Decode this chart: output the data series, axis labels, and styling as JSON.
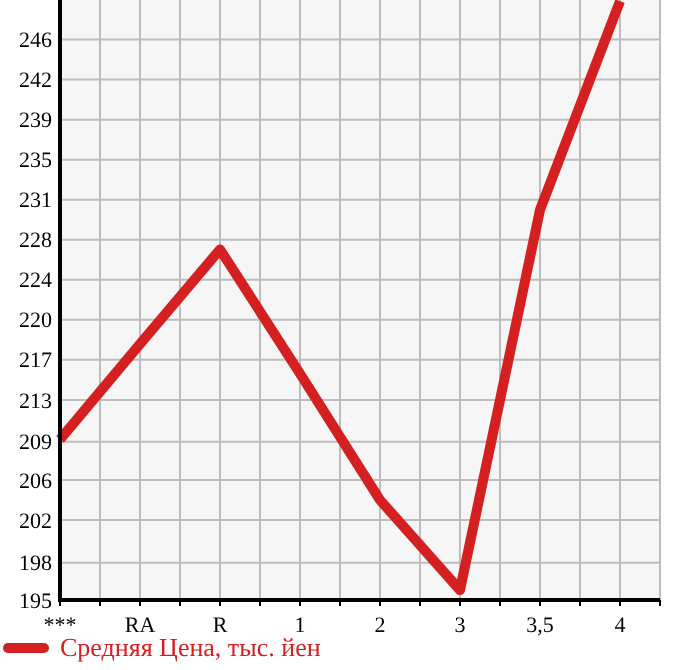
{
  "chart_data": {
    "type": "line",
    "categories": [
      "***",
      "RA",
      "R",
      "1",
      "2",
      "3",
      "3,5",
      "4"
    ],
    "series": [
      {
        "name": "Средняя Цена, тыс. йен",
        "color": "#d42020",
        "values": [
          209.6,
          218.3,
          226.9,
          215.6,
          204.1,
          195.9,
          230.5,
          249.5
        ]
      }
    ],
    "ylim": [
      195,
      249.6
    ],
    "yticks": [
      195,
      {
        "value": 198.4,
        "label": "198"
      },
      {
        "value": 202.29,
        "label": "202"
      },
      {
        "value": 205.93,
        "label": "206"
      },
      {
        "value": 209.4,
        "label": "209"
      },
      {
        "value": 213.21,
        "label": "213"
      },
      {
        "value": 216.86,
        "label": "217"
      },
      {
        "value": 220.5,
        "label": "220"
      },
      {
        "value": 224.14,
        "label": "224"
      },
      {
        "value": 227.79,
        "label": "228"
      },
      {
        "value": 231.43,
        "label": "231"
      },
      {
        "value": 235.07,
        "label": "235"
      },
      {
        "value": 238.71,
        "label": "239"
      },
      {
        "value": 242.36,
        "label": "242"
      },
      246
    ],
    "grid": true,
    "legend": "bottom",
    "marker": "none",
    "line_style": "solid"
  }
}
